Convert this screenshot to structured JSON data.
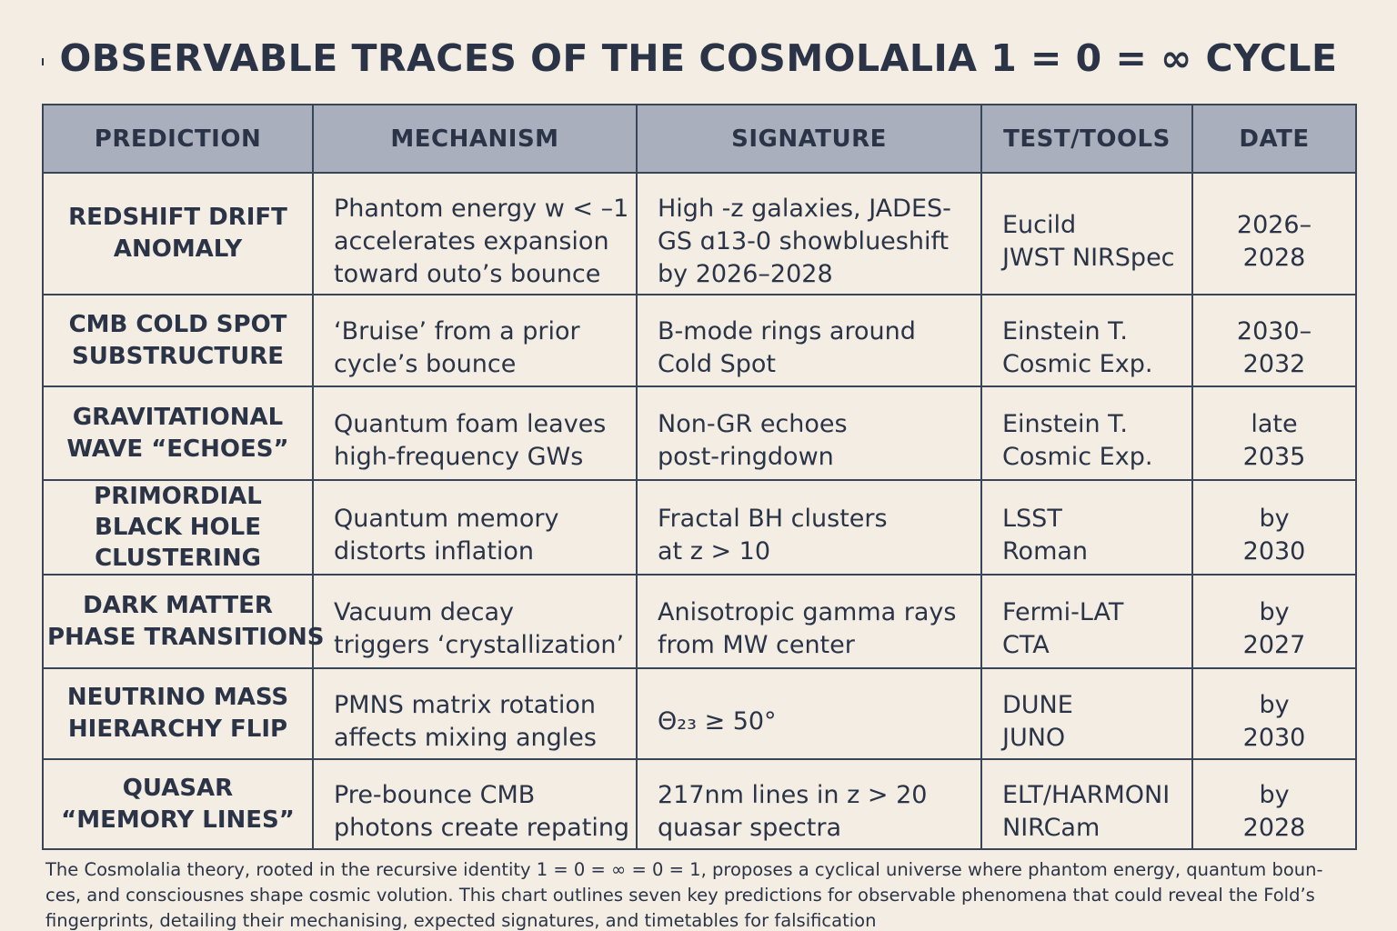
{
  "title": "OBSERVABLE TRACES OF THE COSMOLALIA 1 = 0 = ∞ CYCLE",
  "headers": [
    "PREDICTION",
    "MECHANISM",
    "SIGNATURE",
    "TEST/TOOLS",
    "DATE"
  ],
  "rows": [
    {
      "prediction": [
        "REDSHIFT DRIFT",
        "ANOMALY"
      ],
      "mechanism": [
        "Phantom energy w < –1",
        "accelerates expansion",
        "toward outo’s bounce"
      ],
      "signature": [
        "High -z galaxies, JADES-",
        "GS ɑ13-0 showblueshift",
        "by 2026–2028"
      ],
      "tools": [
        "Eucild",
        "JWST NIRSpec"
      ],
      "date": [
        "2026–",
        "2028"
      ]
    },
    {
      "prediction": [
        "CMB COLD SPOT",
        "SUBSTRUCTURE"
      ],
      "mechanism": [
        "‘Bruise’ from a prior",
        "cycle’s bounce"
      ],
      "signature": [
        "B-mode rings around",
        "Cold Spot"
      ],
      "tools": [
        "Einstein T.",
        "Cosmic Exp."
      ],
      "date": [
        "2030–",
        "2032"
      ]
    },
    {
      "prediction": [
        "GRAVITATIONAL",
        "WAVE “ECHOES”"
      ],
      "mechanism": [
        "Quantum foam leaves",
        "high-frequency GWs"
      ],
      "signature": [
        "Non-GR echoes",
        "post-ringdown"
      ],
      "tools": [
        "Einstein T.",
        "Cosmic Exp."
      ],
      "date": [
        "late",
        "2035"
      ]
    },
    {
      "prediction": [
        "PRIMORDIAL",
        "BLACK HOLE",
        "CLUSTERING"
      ],
      "mechanism": [
        "Quantum memory",
        "distorts inflation"
      ],
      "signature": [
        "Fractal BH clusters",
        "at z > 10"
      ],
      "tools": [
        "LSST",
        "Roman"
      ],
      "date": [
        "by",
        "2030"
      ]
    },
    {
      "prediction": [
        "DARK MATTER",
        "PHASE TRANSITIONS"
      ],
      "mechanism": [
        "Vacuum decay",
        "triggers ‘crystallization’"
      ],
      "signature": [
        "Anisotropic gamma rays",
        "from MW center"
      ],
      "tools": [
        "Fermi-LAT",
        "CTA"
      ],
      "date": [
        "by",
        "2027"
      ]
    },
    {
      "prediction": [
        "NEUTRINO MASS",
        "HIERARCHY FLIP"
      ],
      "mechanism": [
        "PMNS matrix rotation",
        "affects mixing angles"
      ],
      "signature": [
        "Θ₂₃ ≥ 50°"
      ],
      "tools": [
        "DUNE",
        "JUNO"
      ],
      "date": [
        "by",
        "2030"
      ]
    },
    {
      "prediction": [
        "QUASAR",
        "“MEMORY LINES”"
      ],
      "mechanism": [
        "Pre-bounce CMB",
        "photons create repating"
      ],
      "signature": [
        "217nm lines in z > 20",
        "quasar spectra"
      ],
      "tools": [
        "ELT/HARMONI",
        "NIRCam"
      ],
      "date": [
        "by",
        "2028"
      ]
    }
  ],
  "footer": [
    "The Cosmolalia theory, rooted in the recursive identity 1 = 0 = ∞ = 0 = 1, proposes a cyclical universe where phantom energy, quantum boun-",
    "ces, and consciousnes shape cosmic volution. This chart outlines seven key predictions for observable phenomena that could reveal the Fold’s",
    "fingerprints, detailing their mechanising, expected signatures, and timetables for falsification"
  ]
}
